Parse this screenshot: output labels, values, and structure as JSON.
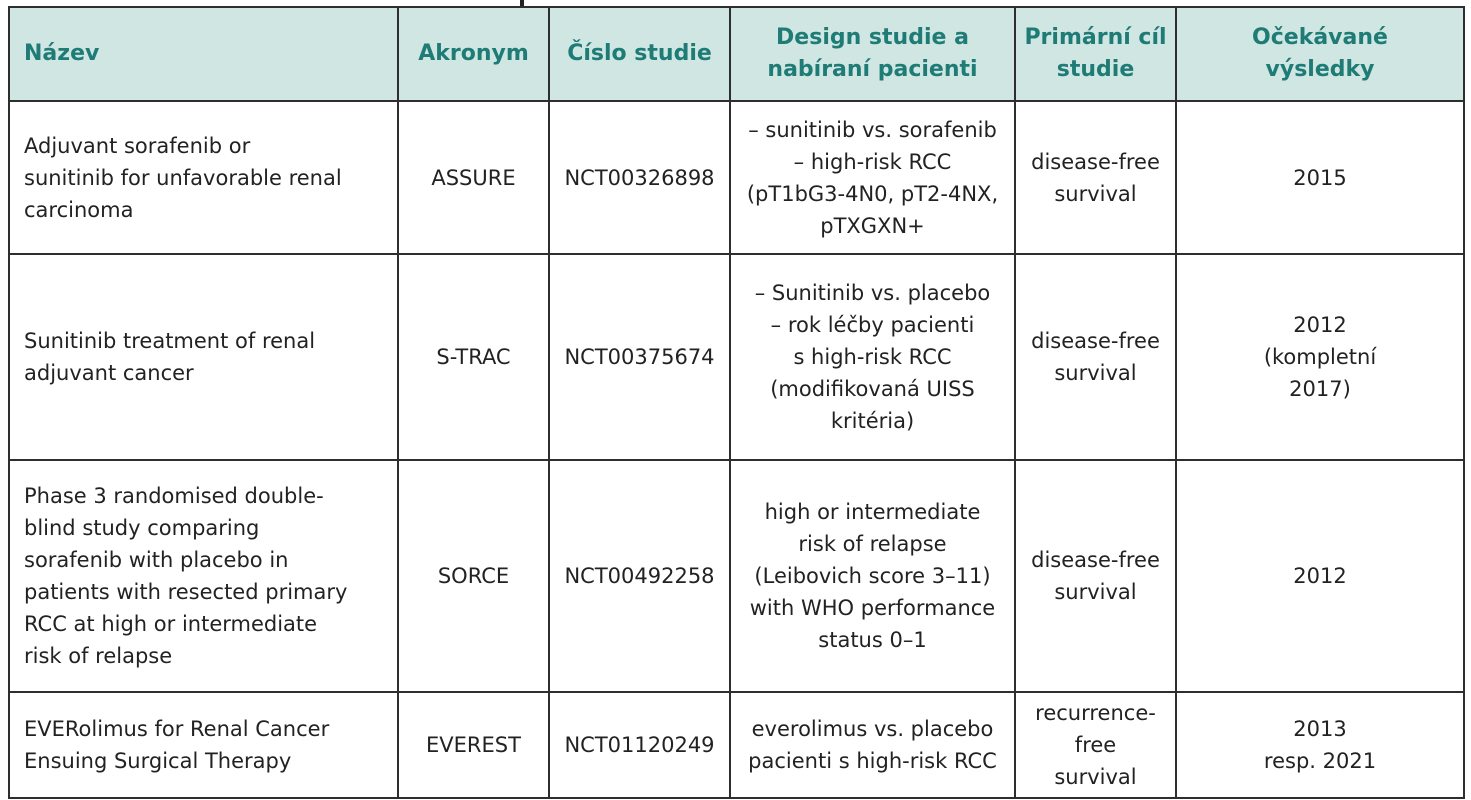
{
  "table": {
    "headers": [
      {
        "key": "nazev",
        "lines": [
          "Název"
        ]
      },
      {
        "key": "akronym",
        "lines": [
          "Akronym"
        ]
      },
      {
        "key": "cislo",
        "lines": [
          "Číslo studie"
        ]
      },
      {
        "key": "design",
        "lines": [
          "Design studie a",
          "nabíraní pacienti"
        ]
      },
      {
        "key": "cil",
        "lines": [
          "Primární cíl",
          "studie"
        ]
      },
      {
        "key": "vysledky",
        "lines": [
          "Očekávané",
          "výsledky"
        ]
      }
    ],
    "rows": [
      {
        "name": [
          "Adjuvant sorafenib or",
          "sunitinib for unfavorable renal",
          "carcinoma"
        ],
        "acronym": "ASSURE",
        "number": "NCT00326898",
        "design": [
          "– sunitinib vs. sorafenib",
          "– high-risk RCC",
          "(pT1bG3-4N0, pT2-4NX,",
          "pTXGXN+"
        ],
        "endpoint": [
          "disease-free",
          "survival"
        ],
        "results": [
          "2015"
        ]
      },
      {
        "name": [
          "Sunitinib treatment of renal",
          "adjuvant cancer"
        ],
        "acronym": "S-TRAC",
        "number": "NCT00375674",
        "design": [
          "– Sunitinib vs. placebo",
          "– rok léčby pacienti",
          "s high-risk RCC",
          "(modifikovaná UISS",
          "kritéria)"
        ],
        "endpoint": [
          "disease-free",
          "survival"
        ],
        "results": [
          "2012",
          "(kompletní",
          "2017)"
        ]
      },
      {
        "name": [
          "Phase 3 randomised double-",
          "blind study comparing",
          "sorafenib with placebo in",
          "patients with resected primary",
          "RCC at high or intermediate",
          "risk of relapse"
        ],
        "acronym": "SORCE",
        "number": "NCT00492258",
        "design": [
          "high or intermediate",
          "risk of relapse",
          "(Leibovich score 3–11)",
          "with WHO performance",
          "status 0–1"
        ],
        "endpoint": [
          "disease-free",
          "survival"
        ],
        "results": [
          "2012"
        ]
      },
      {
        "name": [
          "EVERolimus for Renal Cancer",
          "Ensuing Surgical Therapy"
        ],
        "acronym": "EVEREST",
        "number": "NCT01120249",
        "design": [
          "everolimus vs. placebo",
          "pacienti s high-risk RCC"
        ],
        "endpoint": [
          "recurrence-free",
          "survival"
        ],
        "results": [
          "2013",
          "resp. 2021"
        ]
      }
    ]
  },
  "colors": {
    "header_bg": "#cfe6e3",
    "header_text": "#1f7b75",
    "border": "#2e2e2e"
  }
}
